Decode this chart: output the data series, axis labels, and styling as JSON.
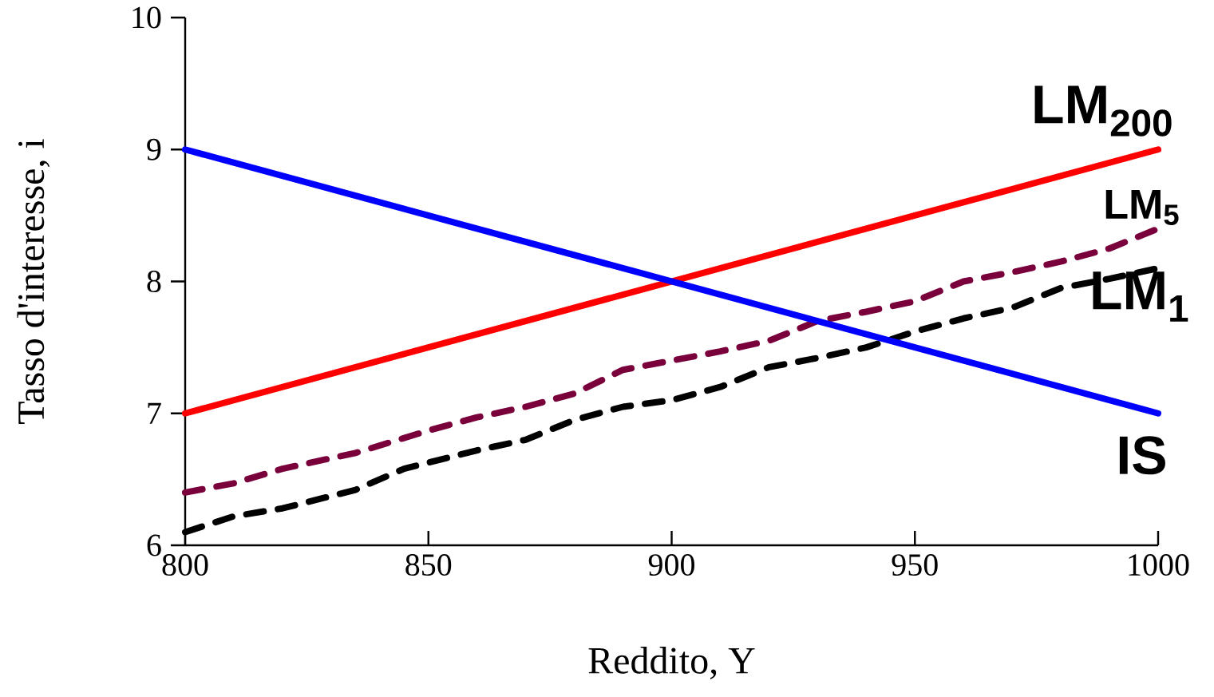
{
  "chart_data": {
    "type": "line",
    "xlabel": "Reddito, Y",
    "ylabel": "Tasso d'interesse, i",
    "xlim": [
      800,
      1000
    ],
    "ylim": [
      6,
      10
    ],
    "xticks": [
      800,
      850,
      900,
      950,
      1000
    ],
    "yticks": [
      6,
      7,
      8,
      9,
      10
    ],
    "grid": false,
    "legend": false,
    "marker": "none",
    "series": [
      {
        "name": "LM$_{200}$",
        "color": "#ff0000",
        "line_style": "solid",
        "x": [
          800,
          1000
        ],
        "values": [
          7,
          9
        ]
      },
      {
        "name": "LM$_{5}$",
        "color": "#7a003c",
        "line_style": "dashed",
        "x": [
          800,
          810,
          820,
          835,
          850,
          860,
          870,
          880,
          890,
          900,
          910,
          920,
          930,
          940,
          950,
          960,
          970,
          980,
          990,
          1000
        ],
        "values": [
          6.4,
          6.47,
          6.58,
          6.7,
          6.87,
          6.97,
          7.05,
          7.15,
          7.33,
          7.4,
          7.47,
          7.55,
          7.7,
          7.77,
          7.85,
          8.0,
          8.07,
          8.15,
          8.25,
          8.4
        ]
      },
      {
        "name": "LM$_{1}$",
        "color": "#000000",
        "line_style": "dashed",
        "x": [
          800,
          810,
          820,
          835,
          845,
          860,
          870,
          880,
          890,
          900,
          910,
          920,
          930,
          940,
          950,
          960,
          970,
          980,
          990,
          1000
        ],
        "values": [
          6.1,
          6.22,
          6.28,
          6.42,
          6.58,
          6.72,
          6.8,
          6.95,
          7.05,
          7.1,
          7.2,
          7.35,
          7.42,
          7.5,
          7.62,
          7.72,
          7.8,
          7.95,
          8.02,
          8.1
        ]
      },
      {
        "name": "IS",
        "color": "#0000ff",
        "line_style": "solid",
        "x": [
          800,
          1000
        ],
        "values": [
          9,
          7
        ]
      }
    ]
  }
}
